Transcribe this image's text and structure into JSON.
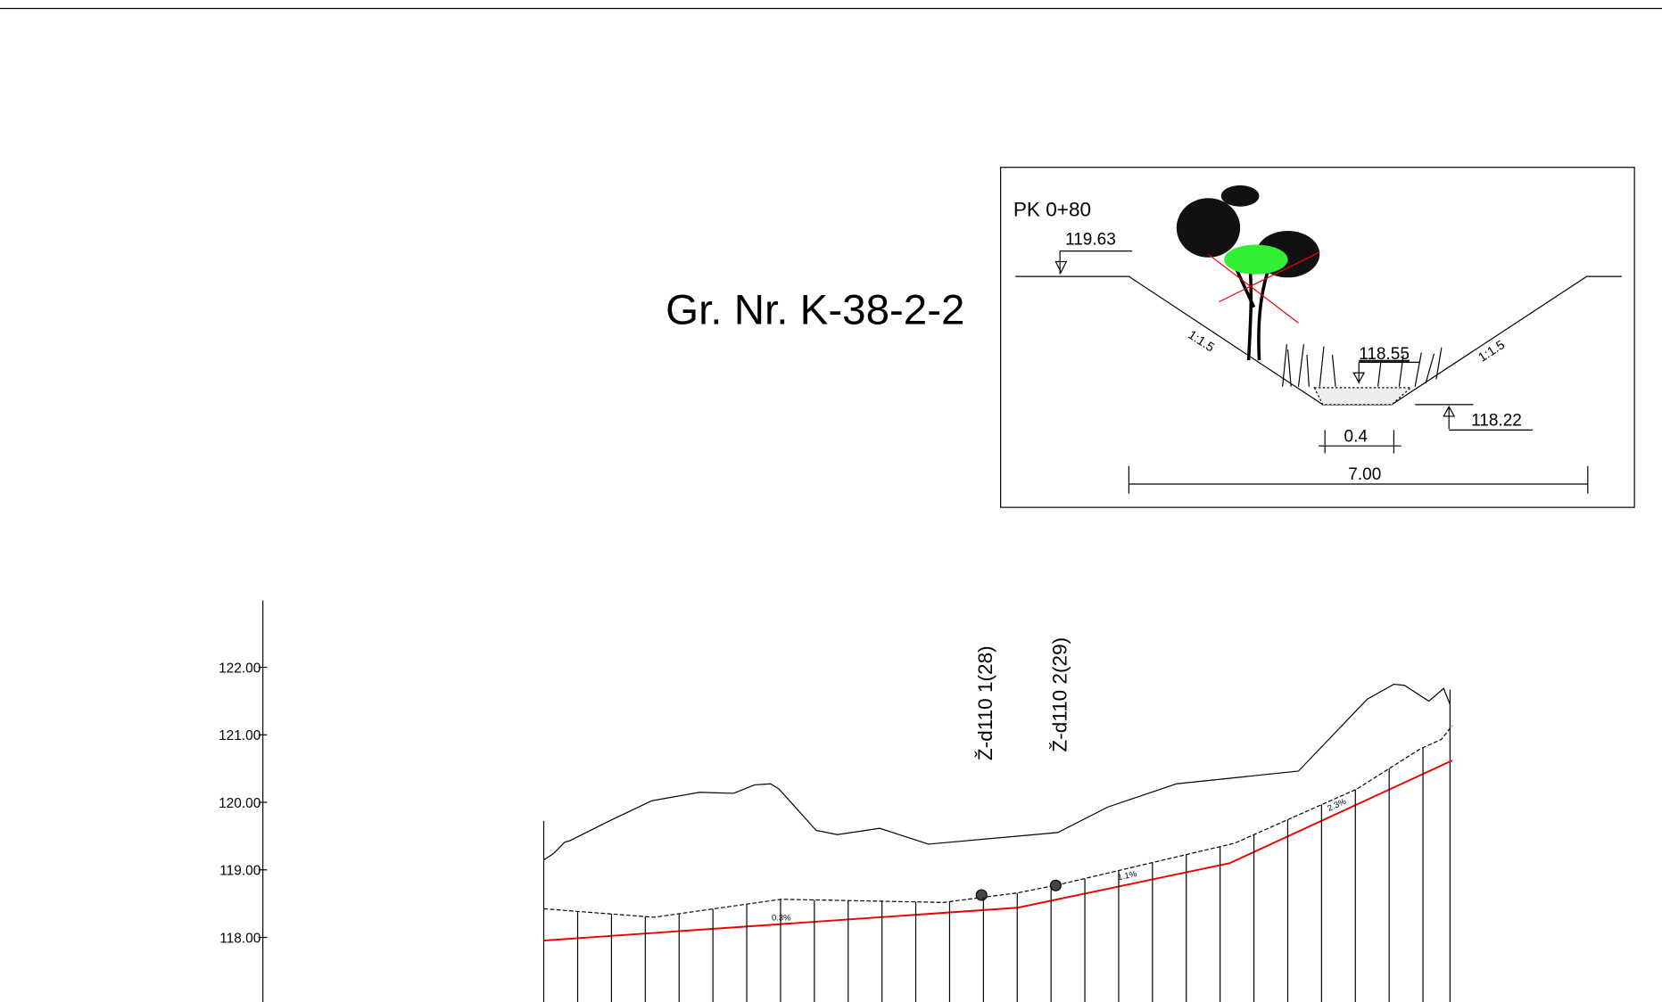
{
  "title": "Gr. Nr. K-38-2-2",
  "section": {
    "station": "PK 0+80",
    "top_level": "119.63",
    "water_level": "118.55",
    "bottom_level": "118.22",
    "bottom_width": "0.4",
    "top_width": "7.00",
    "slope_left": "1:1.5",
    "slope_right": "1:1.5"
  },
  "profile": {
    "axis_labels": [
      "122.00",
      "121.00",
      "120.00",
      "119.00",
      "118.00"
    ],
    "pipes": [
      "Ž-d110 1(28)",
      "Ž-d110 2(29)"
    ],
    "slopes": [
      "0.3%",
      "1.1%",
      "2.3%"
    ]
  }
}
